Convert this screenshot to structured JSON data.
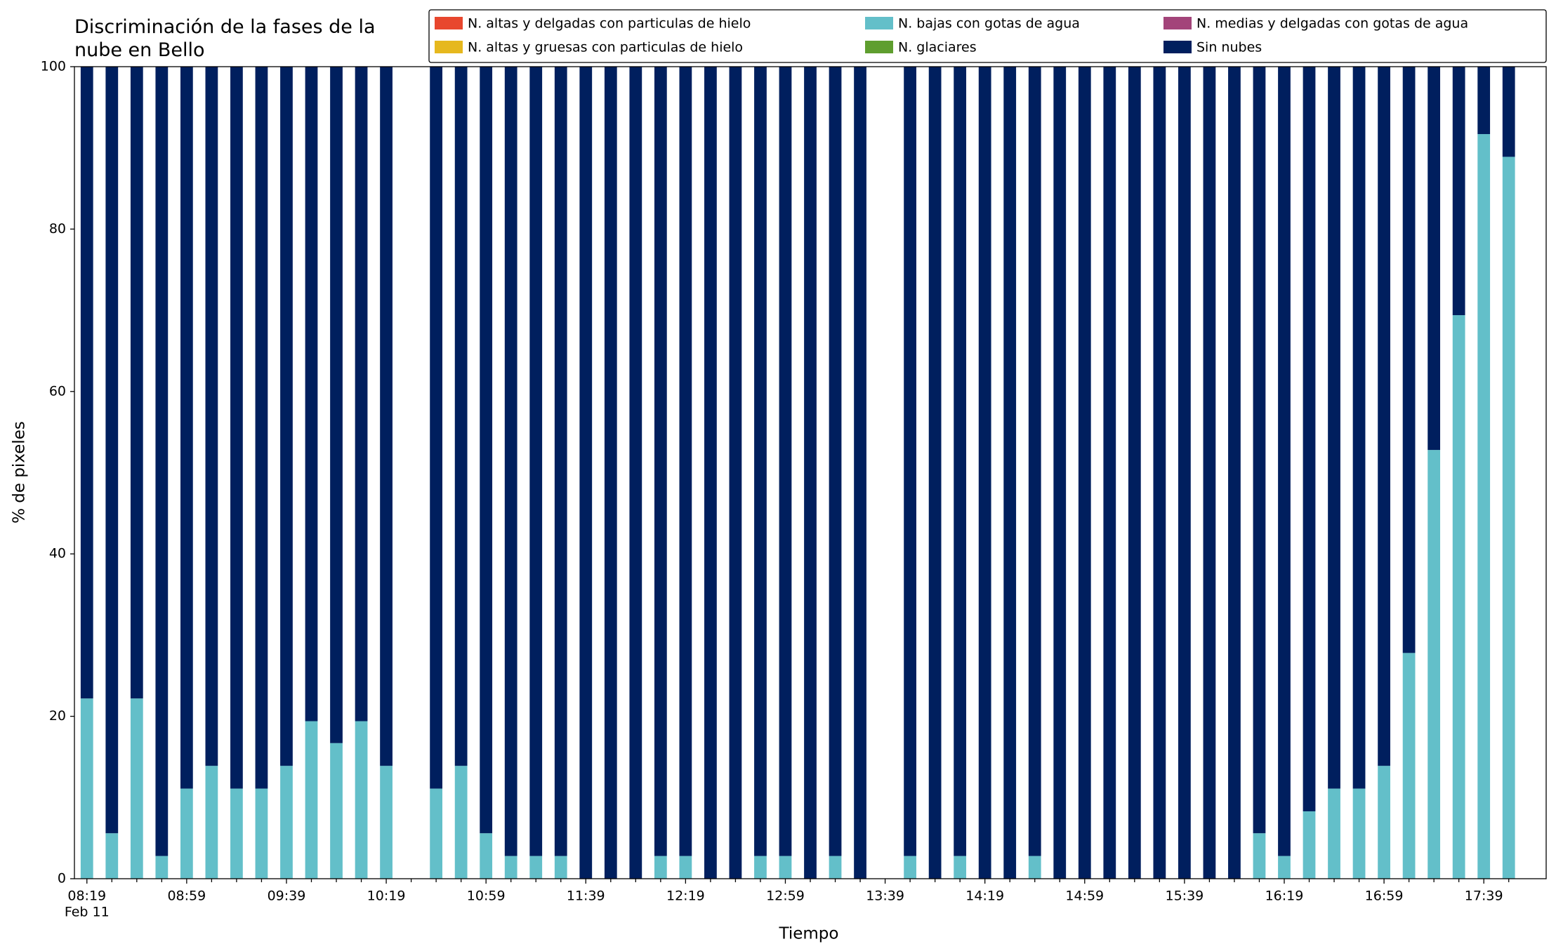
{
  "chart_data": {
    "type": "stacked_bar",
    "title": "Discriminación de la fases de la\nnube en Bello",
    "xlabel": "Tiempo",
    "ylabel": "% de pixeles",
    "date_label": "Feb 11",
    "categories": [
      "08:19",
      null,
      null,
      null,
      "08:59",
      null,
      null,
      null,
      "09:39",
      null,
      null,
      null,
      "10:19",
      null,
      null,
      null,
      "10:59",
      null,
      null,
      null,
      "11:39",
      null,
      null,
      null,
      "12:19",
      null,
      null,
      null,
      "12:59",
      null,
      null,
      null,
      "13:39",
      null,
      null,
      null,
      "14:19",
      null,
      null,
      null,
      "14:59",
      null,
      null,
      null,
      "15:39",
      null,
      null,
      null,
      "16:19",
      null,
      null,
      null,
      "16:59",
      null,
      null,
      null,
      "17:39",
      null
    ],
    "ylim": [
      0,
      100
    ],
    "yticks": [
      0,
      20,
      40,
      60,
      80,
      100
    ],
    "grid": false,
    "legend": "top",
    "series": [
      {
        "name": "N. altas y delgadas con particulas de hielo",
        "color": "#e8472e",
        "values": [
          0,
          0,
          0,
          0,
          0,
          0,
          0,
          0,
          0,
          0,
          0,
          0,
          0,
          null,
          0,
          0,
          0,
          0,
          0,
          0,
          0,
          0,
          0,
          0,
          0,
          0,
          0,
          0,
          0,
          0,
          0,
          0,
          null,
          0,
          0,
          0,
          0,
          0,
          0,
          0,
          0,
          0,
          0,
          0,
          0,
          0,
          0,
          0,
          0,
          0,
          0,
          0,
          0,
          0,
          0,
          0,
          0,
          0
        ]
      },
      {
        "name": "N. altas y gruesas con particulas de hielo",
        "color": "#e6b81e",
        "values": [
          0,
          0,
          0,
          0,
          0,
          0,
          0,
          0,
          0,
          0,
          0,
          0,
          0,
          null,
          0,
          0,
          0,
          0,
          0,
          0,
          0,
          0,
          0,
          0,
          0,
          0,
          0,
          0,
          0,
          0,
          0,
          0,
          null,
          0,
          0,
          0,
          0,
          0,
          0,
          0,
          0,
          0,
          0,
          0,
          0,
          0,
          0,
          0,
          0,
          0,
          0,
          0,
          0,
          0,
          0,
          0,
          0,
          0
        ]
      },
      {
        "name": "N. bajas con gotas de agua",
        "color": "#63bfc9",
        "values": [
          22.2,
          5.6,
          22.2,
          2.8,
          11.1,
          13.9,
          11.1,
          11.1,
          13.9,
          19.4,
          16.7,
          19.4,
          13.9,
          null,
          11.1,
          13.9,
          5.6,
          2.8,
          2.8,
          2.8,
          0,
          0,
          0,
          2.8,
          2.8,
          0,
          0,
          2.8,
          2.8,
          0,
          2.8,
          0,
          null,
          2.8,
          0,
          2.8,
          0,
          0,
          2.8,
          0,
          0,
          0,
          0,
          0,
          0,
          0,
          0,
          5.6,
          2.8,
          8.3,
          11.1,
          11.1,
          13.9,
          27.8,
          52.8,
          69.4,
          91.7,
          88.9
        ]
      },
      {
        "name": "N. glaciares",
        "color": "#5f9e2f",
        "values": [
          0,
          0,
          0,
          0,
          0,
          0,
          0,
          0,
          0,
          0,
          0,
          0,
          0,
          null,
          0,
          0,
          0,
          0,
          0,
          0,
          0,
          0,
          0,
          0,
          0,
          0,
          0,
          0,
          0,
          0,
          0,
          0,
          null,
          0,
          0,
          0,
          0,
          0,
          0,
          0,
          0,
          0,
          0,
          0,
          0,
          0,
          0,
          0,
          0,
          0,
          0,
          0,
          0,
          0,
          0,
          0,
          0,
          0
        ]
      },
      {
        "name": "N. medias y delgadas con gotas de agua",
        "color": "#a3447a",
        "values": [
          0,
          0,
          0,
          0,
          0,
          0,
          0,
          0,
          0,
          0,
          0,
          0,
          0,
          null,
          0,
          0,
          0,
          0,
          0,
          0,
          0,
          0,
          0,
          0,
          0,
          0,
          0,
          0,
          0,
          0,
          0,
          0,
          null,
          0,
          0,
          0,
          0,
          0,
          0,
          0,
          0,
          0,
          0,
          0,
          0,
          0,
          0,
          0,
          0,
          0,
          0,
          0,
          0,
          0,
          0,
          0,
          0,
          0
        ]
      },
      {
        "name": "Sin nubes",
        "color": "#001f5e",
        "values": [
          77.8,
          94.4,
          77.8,
          97.2,
          88.9,
          86.1,
          88.9,
          88.9,
          86.1,
          80.6,
          83.3,
          80.6,
          86.1,
          null,
          88.9,
          86.1,
          94.4,
          97.2,
          97.2,
          97.2,
          100,
          100,
          100,
          97.2,
          97.2,
          100,
          100,
          97.2,
          97.2,
          100,
          97.2,
          100,
          null,
          97.2,
          100,
          97.2,
          100,
          100,
          97.2,
          100,
          100,
          100,
          100,
          100,
          100,
          100,
          100,
          94.4,
          97.2,
          91.7,
          88.9,
          88.9,
          86.1,
          72.2,
          47.2,
          30.6,
          8.3,
          11.1
        ]
      }
    ]
  }
}
